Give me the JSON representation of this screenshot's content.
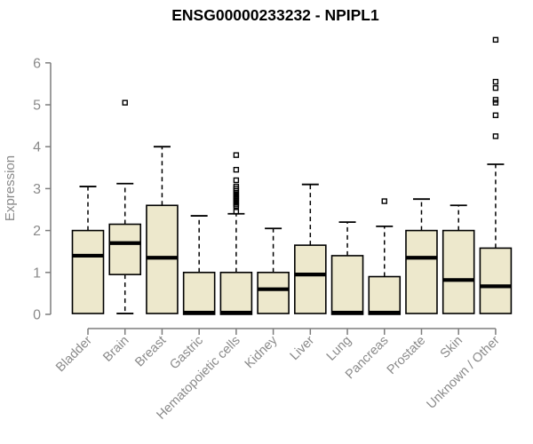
{
  "chart_data": {
    "type": "boxplot",
    "title": "ENSG00000233232 - NPIPL1",
    "xlabel": "",
    "ylabel": "Expression",
    "ylim": [
      0,
      6
    ],
    "yticks": [
      0,
      1,
      2,
      3,
      4,
      5,
      6
    ],
    "grid": false,
    "legend": "none",
    "categories": [
      "Bladder",
      "Brain",
      "Breast",
      "Gastric",
      "Hematopoietic cells",
      "Kidney",
      "Liver",
      "Lung",
      "Pancreas",
      "Prostate",
      "Skin",
      "Unknown / Other"
    ],
    "series": [
      {
        "name": "Bladder",
        "whisker_low": 0.02,
        "q1": 0.02,
        "median": 1.4,
        "q3": 2.0,
        "whisker_high": 3.05,
        "outliers": []
      },
      {
        "name": "Brain",
        "whisker_low": 0.02,
        "q1": 0.95,
        "median": 1.7,
        "q3": 2.15,
        "whisker_high": 3.12,
        "outliers": [
          5.05
        ]
      },
      {
        "name": "Breast",
        "whisker_low": 0.02,
        "q1": 0.02,
        "median": 1.35,
        "q3": 2.6,
        "whisker_high": 4.0,
        "outliers": []
      },
      {
        "name": "Gastric",
        "whisker_low": 0.0,
        "q1": 0.0,
        "median": 0.04,
        "q3": 1.0,
        "whisker_high": 2.35,
        "outliers": []
      },
      {
        "name": "Hematopoietic cells",
        "whisker_low": 0.0,
        "q1": 0.0,
        "median": 0.04,
        "q3": 1.0,
        "whisker_high": 2.4,
        "outliers": [
          3.8,
          3.45,
          3.2,
          3.05,
          3.0,
          2.95,
          2.9,
          2.86,
          2.82,
          2.78,
          2.74,
          2.7,
          2.66,
          2.62,
          2.58,
          2.45
        ]
      },
      {
        "name": "Kidney",
        "whisker_low": 0.02,
        "q1": 0.02,
        "median": 0.6,
        "q3": 1.0,
        "whisker_high": 2.05,
        "outliers": []
      },
      {
        "name": "Liver",
        "whisker_low": 0.02,
        "q1": 0.02,
        "median": 0.95,
        "q3": 1.65,
        "whisker_high": 3.1,
        "outliers": []
      },
      {
        "name": "Lung",
        "whisker_low": 0.0,
        "q1": 0.0,
        "median": 0.04,
        "q3": 1.4,
        "whisker_high": 2.2,
        "outliers": []
      },
      {
        "name": "Pancreas",
        "whisker_low": 0.0,
        "q1": 0.0,
        "median": 0.04,
        "q3": 0.9,
        "whisker_high": 2.1,
        "outliers": [
          2.7
        ]
      },
      {
        "name": "Prostate",
        "whisker_low": 0.02,
        "q1": 0.02,
        "median": 1.35,
        "q3": 2.0,
        "whisker_high": 2.75,
        "outliers": []
      },
      {
        "name": "Skin",
        "whisker_low": 0.02,
        "q1": 0.02,
        "median": 0.82,
        "q3": 2.0,
        "whisker_high": 2.6,
        "outliers": []
      },
      {
        "name": "Unknown / Other",
        "whisker_low": 0.02,
        "q1": 0.02,
        "median": 0.67,
        "q3": 1.58,
        "whisker_high": 3.58,
        "outliers": [
          6.55,
          5.55,
          5.4,
          5.12,
          5.05,
          4.75,
          4.25
        ]
      }
    ],
    "colors": {
      "box_fill": "#EDE8CC",
      "box_border": "#000000",
      "median": "#000000",
      "whisker": "#000000",
      "outlier": "#000000",
      "axis": "#7d7d7d",
      "tick_label": "#8a8a8a",
      "title": "#000000",
      "background": "#ffffff"
    }
  }
}
